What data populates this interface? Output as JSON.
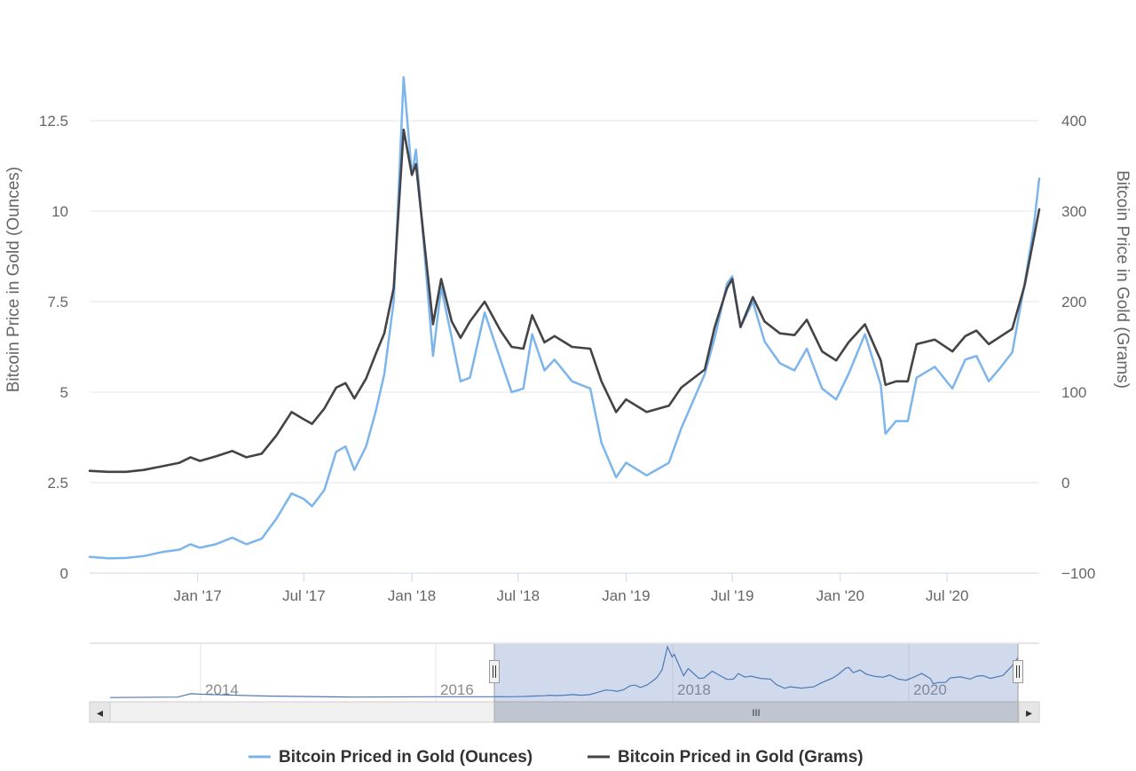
{
  "chart_data": {
    "type": "line",
    "title": "",
    "left_axis": {
      "label": "Bitcoin Price in Gold (Ounces)",
      "ticks": [
        "0",
        "2.5",
        "5",
        "7.5",
        "10",
        "12.5"
      ],
      "ylim": [
        0,
        13.75
      ]
    },
    "right_axis": {
      "label": "Bitcoin Price in Gold (Grams)",
      "ticks": [
        "−100",
        "0",
        "100",
        "200",
        "300",
        "400"
      ],
      "ylim": [
        -100,
        450
      ]
    },
    "x_axis": {
      "xlim": [
        "2016-07-01",
        "2020-12-05"
      ],
      "ticks": [
        {
          "date": "2017-01-01",
          "label": "Jan '17"
        },
        {
          "date": "2017-07-01",
          "label": "Jul '17"
        },
        {
          "date": "2018-01-01",
          "label": "Jan '18"
        },
        {
          "date": "2018-07-01",
          "label": "Jul '18"
        },
        {
          "date": "2019-01-01",
          "label": "Jan '19"
        },
        {
          "date": "2019-07-01",
          "label": "Jul '19"
        },
        {
          "date": "2020-01-01",
          "label": "Jan '20"
        },
        {
          "date": "2020-07-01",
          "label": "Jul '20"
        }
      ]
    },
    "grid": true,
    "legend_position": "bottom-center",
    "series": [
      {
        "name": "Bitcoin Priced in Gold (Ounces)",
        "axis": "left",
        "color": "#7cb5ec",
        "points": [
          [
            "2016-07-01",
            0.45
          ],
          [
            "2016-08-01",
            0.41
          ],
          [
            "2016-09-01",
            0.42
          ],
          [
            "2016-10-01",
            0.47
          ],
          [
            "2016-11-01",
            0.58
          ],
          [
            "2016-12-01",
            0.65
          ],
          [
            "2016-12-20",
            0.8
          ],
          [
            "2017-01-05",
            0.7
          ],
          [
            "2017-02-01",
            0.8
          ],
          [
            "2017-03-01",
            0.98
          ],
          [
            "2017-03-25",
            0.8
          ],
          [
            "2017-04-20",
            0.95
          ],
          [
            "2017-05-15",
            1.5
          ],
          [
            "2017-06-10",
            2.2
          ],
          [
            "2017-07-01",
            2.05
          ],
          [
            "2017-07-15",
            1.85
          ],
          [
            "2017-08-05",
            2.3
          ],
          [
            "2017-08-25",
            3.35
          ],
          [
            "2017-09-10",
            3.5
          ],
          [
            "2017-09-25",
            2.85
          ],
          [
            "2017-10-15",
            3.5
          ],
          [
            "2017-11-01",
            4.5
          ],
          [
            "2017-11-15",
            5.5
          ],
          [
            "2017-12-01",
            7.5
          ],
          [
            "2017-12-18",
            13.7
          ],
          [
            "2018-01-01",
            11.0
          ],
          [
            "2018-01-08",
            11.7
          ],
          [
            "2018-02-06",
            6.0
          ],
          [
            "2018-02-20",
            7.9
          ],
          [
            "2018-03-10",
            6.5
          ],
          [
            "2018-03-25",
            5.3
          ],
          [
            "2018-04-10",
            5.4
          ],
          [
            "2018-05-05",
            7.2
          ],
          [
            "2018-06-01",
            5.9
          ],
          [
            "2018-06-20",
            5.0
          ],
          [
            "2018-07-10",
            5.1
          ],
          [
            "2018-07-25",
            6.6
          ],
          [
            "2018-08-15",
            5.6
          ],
          [
            "2018-09-01",
            5.9
          ],
          [
            "2018-10-01",
            5.3
          ],
          [
            "2018-11-01",
            5.1
          ],
          [
            "2018-11-20",
            3.6
          ],
          [
            "2018-12-15",
            2.65
          ],
          [
            "2019-01-01",
            3.05
          ],
          [
            "2019-02-05",
            2.7
          ],
          [
            "2019-03-15",
            3.05
          ],
          [
            "2019-04-05",
            4.0
          ],
          [
            "2019-05-15",
            5.5
          ],
          [
            "2019-06-01",
            6.5
          ],
          [
            "2019-06-22",
            8.0
          ],
          [
            "2019-07-01",
            8.2
          ],
          [
            "2019-07-15",
            6.8
          ],
          [
            "2019-08-05",
            7.5
          ],
          [
            "2019-08-25",
            6.4
          ],
          [
            "2019-09-20",
            5.8
          ],
          [
            "2019-10-15",
            5.6
          ],
          [
            "2019-11-05",
            6.2
          ],
          [
            "2019-12-01",
            5.1
          ],
          [
            "2019-12-25",
            4.8
          ],
          [
            "2020-01-15",
            5.5
          ],
          [
            "2020-02-12",
            6.6
          ],
          [
            "2020-03-10",
            5.2
          ],
          [
            "2020-03-18",
            3.85
          ],
          [
            "2020-04-05",
            4.2
          ],
          [
            "2020-04-25",
            4.2
          ],
          [
            "2020-05-10",
            5.4
          ],
          [
            "2020-06-10",
            5.7
          ],
          [
            "2020-07-10",
            5.1
          ],
          [
            "2020-08-01",
            5.9
          ],
          [
            "2020-08-20",
            6.0
          ],
          [
            "2020-09-10",
            5.3
          ],
          [
            "2020-10-01",
            5.7
          ],
          [
            "2020-10-20",
            6.1
          ],
          [
            "2020-11-10",
            8.0
          ],
          [
            "2020-11-25",
            9.5
          ],
          [
            "2020-12-05",
            10.9
          ]
        ]
      },
      {
        "name": "Bitcoin Priced in Gold (Grams)",
        "axis": "right",
        "color": "#434348",
        "points": [
          [
            "2016-07-01",
            13
          ],
          [
            "2016-08-01",
            12
          ],
          [
            "2016-09-01",
            12
          ],
          [
            "2016-10-01",
            14
          ],
          [
            "2016-11-01",
            18
          ],
          [
            "2016-12-01",
            22
          ],
          [
            "2016-12-20",
            28
          ],
          [
            "2017-01-05",
            24
          ],
          [
            "2017-02-01",
            29
          ],
          [
            "2017-03-01",
            35
          ],
          [
            "2017-03-25",
            28
          ],
          [
            "2017-04-20",
            32
          ],
          [
            "2017-05-15",
            52
          ],
          [
            "2017-06-10",
            78
          ],
          [
            "2017-07-01",
            70
          ],
          [
            "2017-07-15",
            65
          ],
          [
            "2017-08-05",
            82
          ],
          [
            "2017-08-25",
            105
          ],
          [
            "2017-09-10",
            110
          ],
          [
            "2017-09-25",
            93
          ],
          [
            "2017-10-15",
            115
          ],
          [
            "2017-11-01",
            143
          ],
          [
            "2017-11-15",
            165
          ],
          [
            "2017-12-01",
            215
          ],
          [
            "2017-12-18",
            390
          ],
          [
            "2018-01-01",
            340
          ],
          [
            "2018-01-08",
            352
          ],
          [
            "2018-02-06",
            175
          ],
          [
            "2018-02-20",
            225
          ],
          [
            "2018-03-10",
            178
          ],
          [
            "2018-03-25",
            160
          ],
          [
            "2018-04-10",
            178
          ],
          [
            "2018-05-05",
            200
          ],
          [
            "2018-06-01",
            168
          ],
          [
            "2018-06-20",
            150
          ],
          [
            "2018-07-10",
            148
          ],
          [
            "2018-07-25",
            185
          ],
          [
            "2018-08-15",
            155
          ],
          [
            "2018-09-01",
            162
          ],
          [
            "2018-10-01",
            150
          ],
          [
            "2018-11-01",
            148
          ],
          [
            "2018-11-20",
            112
          ],
          [
            "2018-12-15",
            78
          ],
          [
            "2019-01-01",
            92
          ],
          [
            "2019-02-05",
            78
          ],
          [
            "2019-03-15",
            85
          ],
          [
            "2019-04-05",
            105
          ],
          [
            "2019-05-15",
            125
          ],
          [
            "2019-06-01",
            172
          ],
          [
            "2019-06-22",
            215
          ],
          [
            "2019-07-01",
            225
          ],
          [
            "2019-07-15",
            172
          ],
          [
            "2019-08-05",
            205
          ],
          [
            "2019-08-25",
            178
          ],
          [
            "2019-09-20",
            165
          ],
          [
            "2019-10-15",
            163
          ],
          [
            "2019-11-05",
            180
          ],
          [
            "2019-12-01",
            145
          ],
          [
            "2019-12-25",
            135
          ],
          [
            "2020-01-15",
            155
          ],
          [
            "2020-02-12",
            175
          ],
          [
            "2020-03-10",
            135
          ],
          [
            "2020-03-18",
            108
          ],
          [
            "2020-04-05",
            112
          ],
          [
            "2020-04-25",
            112
          ],
          [
            "2020-05-10",
            153
          ],
          [
            "2020-06-10",
            158
          ],
          [
            "2020-07-10",
            145
          ],
          [
            "2020-08-01",
            162
          ],
          [
            "2020-08-20",
            168
          ],
          [
            "2020-09-10",
            153
          ],
          [
            "2020-10-01",
            162
          ],
          [
            "2020-10-20",
            170
          ],
          [
            "2020-11-10",
            218
          ],
          [
            "2020-11-25",
            268
          ],
          [
            "2020-12-05",
            302
          ]
        ]
      }
    ]
  },
  "navigator": {
    "labels": [
      "2014",
      "2016",
      "2018",
      "2020"
    ],
    "scroll_glyph": "III",
    "left_arrow": "◂",
    "right_arrow": "▸"
  }
}
